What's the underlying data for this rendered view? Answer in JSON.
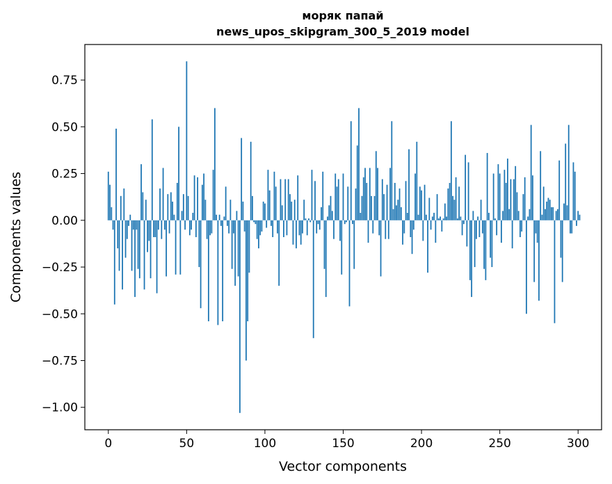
{
  "chart_data": {
    "type": "bar",
    "title_line1": "моряк папай",
    "title_line2": "news_upos_skipgram_300_5_2019 model",
    "xlabel": "Vector components",
    "ylabel": "Components values",
    "xlim": [
      -15,
      315
    ],
    "ylim": [
      -1.12,
      0.94
    ],
    "xticks": [
      0,
      50,
      100,
      150,
      200,
      250,
      300
    ],
    "xtick_labels": [
      "0",
      "50",
      "100",
      "150",
      "200",
      "250",
      "300"
    ],
    "yticks": [
      -1.0,
      -0.75,
      -0.5,
      -0.25,
      0.0,
      0.25,
      0.5,
      0.75
    ],
    "ytick_labels": [
      "−1.00",
      "−0.75",
      "−0.50",
      "−0.25",
      "0.00",
      "0.25",
      "0.50",
      "0.75"
    ],
    "bar_color": "#1f77b4",
    "values": [
      0.26,
      0.19,
      0.07,
      -0.05,
      -0.45,
      0.49,
      -0.15,
      -0.27,
      0.13,
      -0.37,
      0.17,
      -0.2,
      -0.1,
      -0.03,
      0.03,
      -0.27,
      -0.05,
      -0.41,
      -0.05,
      -0.26,
      -0.31,
      0.3,
      0.15,
      -0.37,
      0.11,
      -0.17,
      -0.11,
      -0.31,
      0.54,
      -0.09,
      -0.09,
      -0.39,
      -0.05,
      0.17,
      -0.1,
      0.28,
      -0.05,
      -0.3,
      0.14,
      -0.07,
      0.15,
      0.1,
      0.03,
      -0.29,
      0.2,
      0.5,
      -0.29,
      0.05,
      0.14,
      -0.05,
      0.85,
      0.13,
      -0.08,
      -0.05,
      0.04,
      0.24,
      -0.09,
      0.23,
      -0.25,
      -0.47,
      0.19,
      0.25,
      0.11,
      -0.1,
      -0.54,
      -0.08,
      -0.07,
      0.27,
      0.6,
      0.03,
      -0.56,
      0.03,
      -0.03,
      -0.54,
      0.02,
      0.18,
      -0.03,
      -0.07,
      0.11,
      -0.26,
      -0.07,
      -0.35,
      0.05,
      -0.3,
      -1.03,
      0.44,
      0.1,
      -0.06,
      -0.75,
      -0.54,
      -0.28,
      0.42,
      0.13,
      -0.01,
      -0.02,
      -0.1,
      -0.15,
      -0.08,
      -0.06,
      0.1,
      0.09,
      -0.04,
      0.27,
      0.16,
      -0.03,
      -0.09,
      0.26,
      0.18,
      -0.07,
      -0.35,
      0.22,
      0.08,
      -0.09,
      0.22,
      -0.08,
      0.22,
      0.14,
      0.1,
      -0.13,
      0.11,
      -0.15,
      0.24,
      -0.08,
      -0.13,
      -0.07,
      0.11,
      0.01,
      -0.08,
      0.01,
      -0.01,
      0.27,
      -0.63,
      0.21,
      -0.07,
      -0.02,
      -0.05,
      0.07,
      0.26,
      -0.26,
      -0.41,
      0.02,
      0.08,
      0.13,
      0.05,
      -0.1,
      0.25,
      0.18,
      0.22,
      -0.11,
      -0.29,
      0.25,
      -0.02,
      -0.01,
      0.18,
      -0.46,
      0.53,
      -0.02,
      -0.26,
      0.17,
      0.4,
      0.6,
      0.04,
      0.13,
      0.23,
      0.28,
      0.2,
      -0.12,
      0.28,
      0.13,
      -0.07,
      0.13,
      0.37,
      0.28,
      -0.08,
      -0.3,
      0.22,
      0.14,
      -0.1,
      0.19,
      -0.1,
      0.28,
      0.53,
      0.06,
      0.2,
      0.08,
      0.11,
      0.17,
      0.07,
      -0.13,
      -0.07,
      0.21,
      0.04,
      0.38,
      -0.09,
      -0.18,
      -0.05,
      0.25,
      0.42,
      0.03,
      0.18,
      0.16,
      -0.11,
      0.19,
      0.03,
      -0.28,
      0.12,
      -0.05,
      0.02,
      0.04,
      -0.12,
      0.14,
      0.01,
      0.02,
      -0.06,
      0.01,
      0.09,
      0.02,
      0.17,
      0.2,
      0.53,
      0.13,
      0.11,
      0.23,
      0.01,
      0.18,
      0.02,
      -0.08,
      -0.02,
      0.35,
      -0.14,
      0.31,
      -0.32,
      -0.41,
      0.05,
      -0.25,
      -0.1,
      0.02,
      -0.09,
      0.11,
      -0.07,
      -0.26,
      -0.32,
      0.36,
      0.04,
      -0.2,
      -0.25,
      0.25,
      0.01,
      -0.08,
      0.3,
      0.25,
      -0.12,
      0.05,
      0.27,
      0.2,
      0.33,
      0.06,
      0.22,
      -0.15,
      0.22,
      0.29,
      0.15,
      0.05,
      -0.09,
      -0.06,
      0.14,
      0.23,
      -0.5,
      0.02,
      0.06,
      0.51,
      0.24,
      -0.33,
      -0.07,
      -0.12,
      -0.43,
      0.37,
      0.03,
      0.18,
      0.06,
      0.1,
      0.12,
      0.11,
      0.07,
      0.07,
      -0.55,
      0.05,
      0.06,
      0.32,
      -0.2,
      -0.33,
      0.09,
      0.41,
      0.08,
      0.51,
      -0.07,
      -0.07,
      0.31,
      0.26,
      -0.03,
      0.05,
      0.03
    ]
  }
}
